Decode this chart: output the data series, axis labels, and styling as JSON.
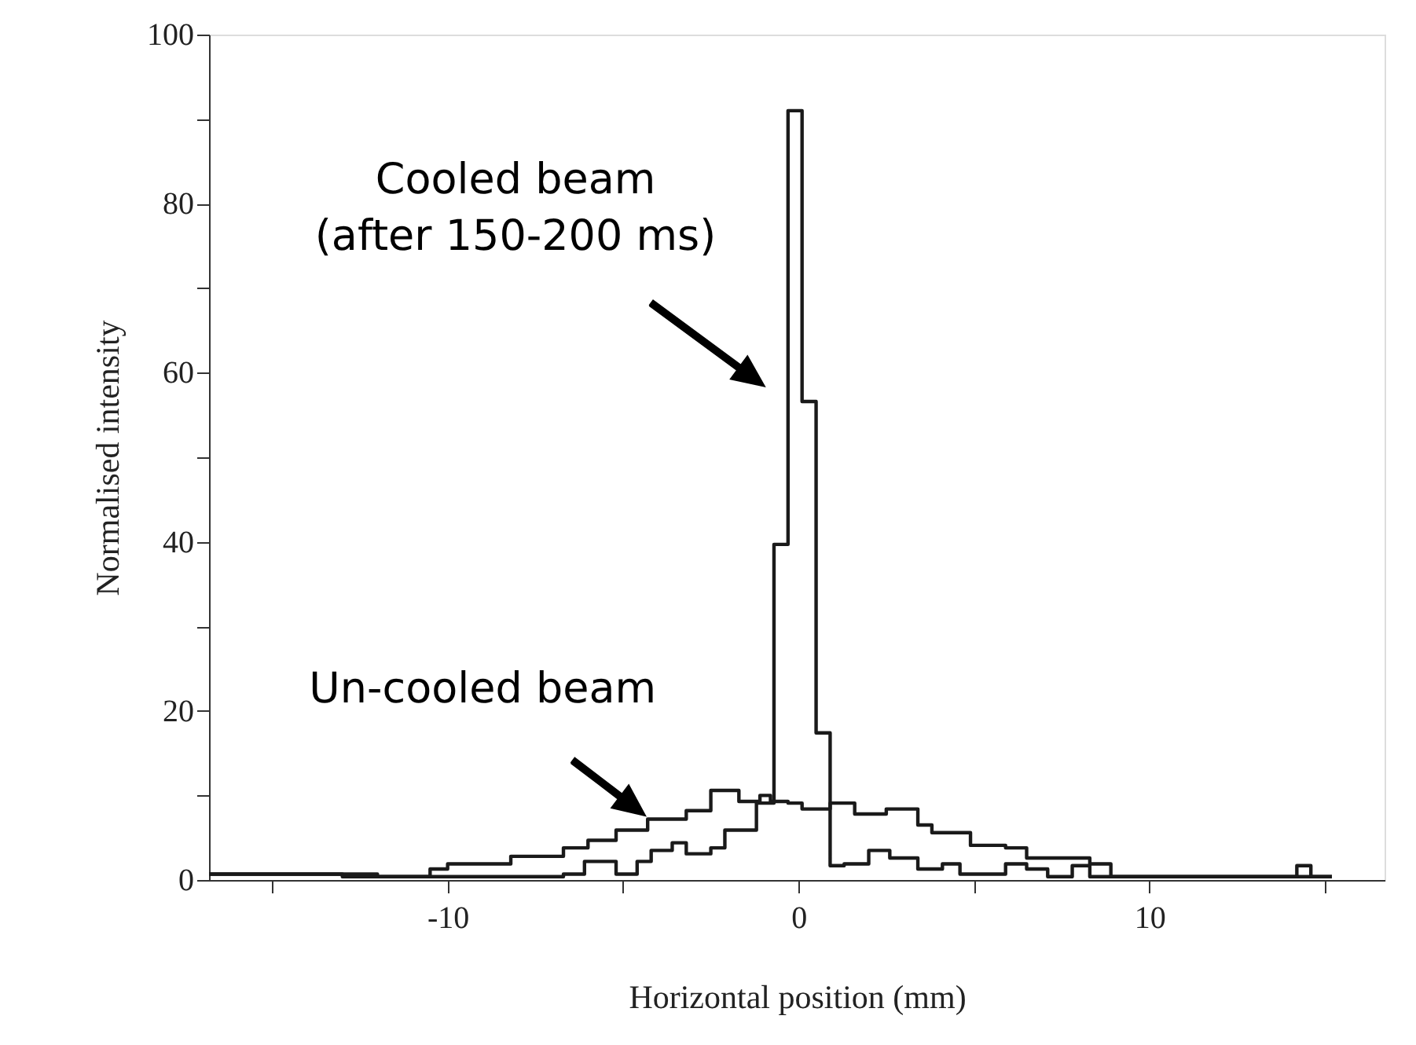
{
  "chart_data": {
    "type": "step",
    "xlabel": "Horizontal position (mm)",
    "ylabel": "Normalised intensity",
    "xlim": [
      -16.8,
      16.7
    ],
    "ylim": [
      0,
      100
    ],
    "xticks": [
      {
        "value": -15,
        "label": null
      },
      -10,
      {
        "value": -5,
        "label": null
      },
      0,
      {
        "value": 5,
        "label": null
      },
      10,
      {
        "value": 15,
        "label": null
      }
    ],
    "yticks": [
      0,
      {
        "value": 10,
        "label": null
      },
      20,
      {
        "value": 30,
        "label": null
      },
      40,
      {
        "value": 50,
        "label": null
      },
      60,
      {
        "value": 70,
        "label": null
      },
      80,
      {
        "value": 90,
        "label": null
      },
      100
    ],
    "grid": false,
    "marker": "none",
    "line_style": "solid",
    "series": [
      {
        "color": "#1a1a1a",
        "x": [
          -16.8,
          -12,
          -10.5,
          -10,
          -8.2,
          -6.7,
          -6,
          -5.2,
          -4.3,
          -3.2,
          -2.5,
          -1.7,
          -1.1,
          -0.8,
          -0.3,
          0.1,
          0.9,
          1.6,
          2.5,
          3.4,
          3.8,
          4.9,
          5.9,
          6.5,
          7.1,
          8.3,
          8.9,
          15.2
        ],
        "values": [
          0.7,
          0.4,
          1.3,
          1.9,
          2.8,
          3.8,
          4.7,
          5.9,
          7.2,
          8.2,
          10.6,
          9.3,
          10,
          9.3,
          9.1,
          8.4,
          9.1,
          7.8,
          8.4,
          6.5,
          5.6,
          4.1,
          3.8,
          2.6,
          2.6,
          1.9,
          0.4,
          0.4
        ]
      },
      {
        "color": "#1a1a1a",
        "x": [
          -16.8,
          -13,
          -6.7,
          -6.1,
          -5.2,
          -4.6,
          -4.2,
          -3.6,
          -3.2,
          -2.5,
          -2.1,
          -1.2,
          -0.7,
          -0.3,
          0.1,
          0.5,
          0.9,
          1.3,
          2.0,
          2.6,
          3.4,
          4.1,
          4.6,
          5.9,
          6.5,
          7.1,
          7.8,
          8.3,
          14.2,
          14.6,
          15.2
        ],
        "values": [
          0.7,
          0.4,
          0.7,
          2.2,
          0.7,
          2.2,
          3.5,
          4.4,
          3.1,
          3.8,
          5.9,
          9.1,
          39.7,
          91,
          56.6,
          17.4,
          1.7,
          1.9,
          3.5,
          2.6,
          1.3,
          1.9,
          0.7,
          1.9,
          1.3,
          0.4,
          1.7,
          0.4,
          1.7,
          0.4,
          0.4
        ]
      }
    ],
    "annotations": [
      "Cooled beam\n(after 150-200 ms)",
      {
        "text": "Un-cooled beam",
        "x": -4.3,
        "y": 7.4
      }
    ]
  }
}
